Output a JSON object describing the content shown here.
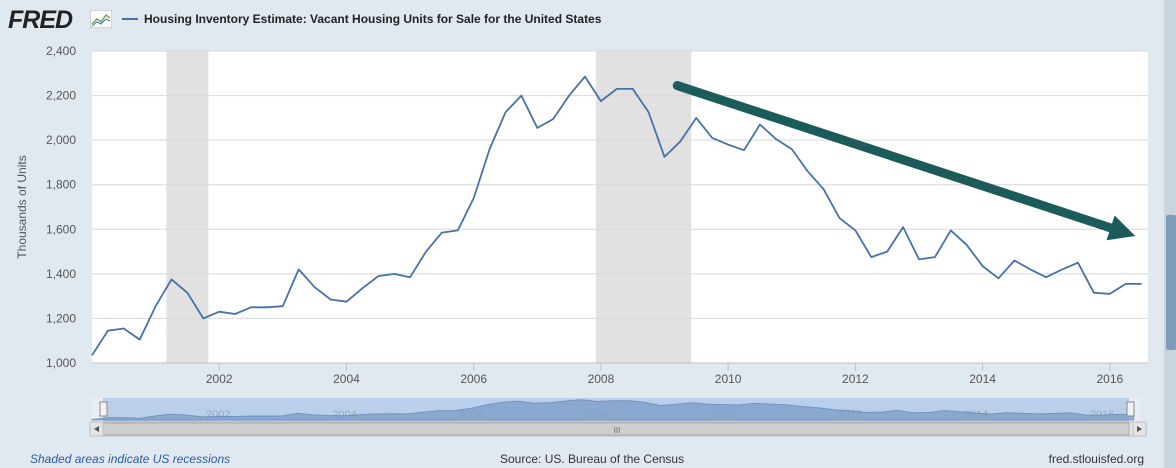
{
  "header": {
    "logo_text": "FRED",
    "series_title": "Housing Inventory Estimate: Vacant Housing Units for Sale for the United States",
    "series_color": "#4572a7"
  },
  "chart_data": {
    "type": "line",
    "title": "Housing Inventory Estimate: Vacant Housing Units for Sale for the United States",
    "ylabel": "Thousands of Units",
    "xlabel": "",
    "ylim": [
      1000,
      2400
    ],
    "xlim": [
      2000.0,
      2016.6
    ],
    "yticks": [
      "1,000",
      "1,200",
      "1,400",
      "1,600",
      "1,800",
      "2,000",
      "2,200",
      "2,400"
    ],
    "xticks": [
      "2002",
      "2004",
      "2006",
      "2008",
      "2010",
      "2012",
      "2014",
      "2016"
    ],
    "recessions": [
      [
        2001.17,
        2001.83
      ],
      [
        2007.92,
        2009.42
      ]
    ],
    "grid": true,
    "series": [
      {
        "name": "Housing Inventory Estimate: Vacant Housing Units for Sale for the United States",
        "color": "#4572a7",
        "x": [
          2000.0,
          2000.25,
          2000.5,
          2000.75,
          2001.0,
          2001.25,
          2001.5,
          2001.75,
          2002.0,
          2002.25,
          2002.5,
          2002.75,
          2003.0,
          2003.25,
          2003.5,
          2003.75,
          2004.0,
          2004.25,
          2004.5,
          2004.75,
          2005.0,
          2005.25,
          2005.5,
          2005.75,
          2006.0,
          2006.25,
          2006.5,
          2006.75,
          2007.0,
          2007.25,
          2007.5,
          2007.75,
          2008.0,
          2008.25,
          2008.5,
          2008.75,
          2009.0,
          2009.25,
          2009.5,
          2009.75,
          2010.0,
          2010.25,
          2010.5,
          2010.75,
          2011.0,
          2011.25,
          2011.5,
          2011.75,
          2012.0,
          2012.25,
          2012.5,
          2012.75,
          2013.0,
          2013.25,
          2013.5,
          2013.75,
          2014.0,
          2014.25,
          2014.5,
          2014.75,
          2015.0,
          2015.25,
          2015.5,
          2015.75,
          2016.0,
          2016.25,
          2016.5
        ],
        "values": [
          1035,
          1145,
          1155,
          1105,
          1255,
          1375,
          1315,
          1200,
          1230,
          1220,
          1250,
          1250,
          1255,
          1420,
          1340,
          1285,
          1275,
          1335,
          1390,
          1400,
          1385,
          1500,
          1585,
          1595,
          1740,
          1960,
          2125,
          2200,
          2055,
          2095,
          2200,
          2285,
          2175,
          2230,
          2230,
          2125,
          1925,
          1995,
          2100,
          2010,
          1980,
          1955,
          2070,
          2005,
          1960,
          1860,
          1780,
          1650,
          1595,
          1475,
          1500,
          1610,
          1465,
          1475,
          1595,
          1530,
          1435,
          1380,
          1460,
          1420,
          1385,
          1420,
          1450,
          1315,
          1310,
          1355,
          1355
        ]
      }
    ],
    "annotation": {
      "type": "arrow",
      "color": "#1b5c5a",
      "from": [
        2009.2,
        2245
      ],
      "to": [
        2016.4,
        1570
      ]
    }
  },
  "navigator": {
    "labels": [
      "2002",
      "2004",
      "2006",
      "2008",
      "2010",
      "2012",
      "2014",
      "2016"
    ],
    "scroll_glyph": "III"
  },
  "footer": {
    "note": "Shaded areas indicate US recessions",
    "source": "Source: US. Bureau of the Census",
    "site": "fred.stlouisfed.org"
  }
}
